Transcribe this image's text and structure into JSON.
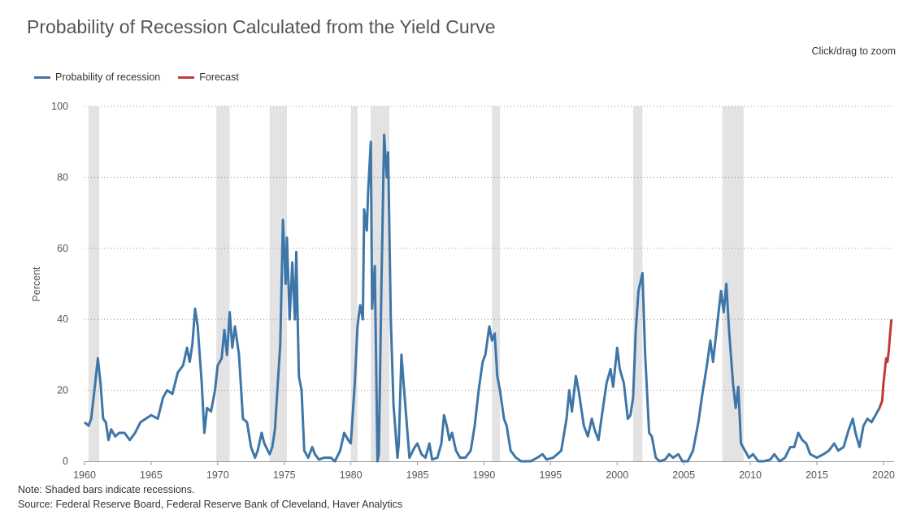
{
  "header": {
    "title": "Probability of Recession Calculated from the Yield Curve",
    "zoom_hint": "Click/drag to zoom"
  },
  "notes": [
    "Note: Shaded bars indicate recessions.",
    "Source: Federal Reserve Board, Federal Reserve Bank of Cleveland, Haver Analytics"
  ],
  "colors": {
    "history": "#3e76a8",
    "forecast": "#c0393b",
    "recession": "#e3e3e3"
  },
  "chart_data": {
    "type": "line",
    "title": "Probability of Recession Calculated from the Yield Curve",
    "xlabel": "",
    "ylabel": "Percent",
    "xlim": [
      1960,
      2020.8
    ],
    "ylim": [
      0,
      100
    ],
    "xticks": [
      "1960",
      "1965",
      "1970",
      "1975",
      "1980",
      "1985",
      "1990",
      "1995",
      "2000",
      "2005",
      "2010",
      "2015",
      "2020"
    ],
    "yticks": [
      "0",
      "20",
      "40",
      "60",
      "80",
      "100"
    ],
    "grid": true,
    "legend": "top-left",
    "recessions": [
      [
        1960.3,
        1961.1
      ],
      [
        1969.9,
        1970.9
      ],
      [
        1973.9,
        1975.2
      ],
      [
        1980.0,
        1980.5
      ],
      [
        1981.5,
        1982.9
      ],
      [
        1990.6,
        1991.2
      ],
      [
        2001.2,
        2001.9
      ],
      [
        2007.9,
        2009.5
      ]
    ],
    "series": [
      {
        "name": "Probability of recession",
        "points": [
          [
            1960.0,
            11
          ],
          [
            1960.3,
            10
          ],
          [
            1960.5,
            12
          ],
          [
            1960.8,
            22
          ],
          [
            1961.0,
            29
          ],
          [
            1961.2,
            22
          ],
          [
            1961.4,
            12
          ],
          [
            1961.6,
            11
          ],
          [
            1961.8,
            6
          ],
          [
            1962.0,
            9
          ],
          [
            1962.3,
            7
          ],
          [
            1962.6,
            8
          ],
          [
            1963.0,
            8
          ],
          [
            1963.4,
            6
          ],
          [
            1963.8,
            8
          ],
          [
            1964.2,
            11
          ],
          [
            1964.6,
            12
          ],
          [
            1965.0,
            13
          ],
          [
            1965.5,
            12
          ],
          [
            1965.9,
            18
          ],
          [
            1966.2,
            20
          ],
          [
            1966.6,
            19
          ],
          [
            1967.0,
            25
          ],
          [
            1967.4,
            27
          ],
          [
            1967.7,
            32
          ],
          [
            1967.9,
            28
          ],
          [
            1968.1,
            33
          ],
          [
            1968.3,
            43
          ],
          [
            1968.5,
            38
          ],
          [
            1968.8,
            22
          ],
          [
            1969.0,
            8
          ],
          [
            1969.2,
            15
          ],
          [
            1969.5,
            14
          ],
          [
            1969.8,
            20
          ],
          [
            1970.0,
            27
          ],
          [
            1970.3,
            29
          ],
          [
            1970.5,
            37
          ],
          [
            1970.7,
            30
          ],
          [
            1970.9,
            42
          ],
          [
            1971.1,
            32
          ],
          [
            1971.3,
            38
          ],
          [
            1971.6,
            30
          ],
          [
            1971.9,
            12
          ],
          [
            1972.2,
            11
          ],
          [
            1972.5,
            4
          ],
          [
            1972.8,
            1
          ],
          [
            1973.0,
            3
          ],
          [
            1973.3,
            8
          ],
          [
            1973.5,
            5
          ],
          [
            1973.9,
            2
          ],
          [
            1974.1,
            4
          ],
          [
            1974.3,
            9
          ],
          [
            1974.5,
            21
          ],
          [
            1974.7,
            33
          ],
          [
            1974.9,
            68
          ],
          [
            1975.1,
            50
          ],
          [
            1975.2,
            63
          ],
          [
            1975.4,
            40
          ],
          [
            1975.6,
            56
          ],
          [
            1975.8,
            40
          ],
          [
            1975.9,
            59
          ],
          [
            1976.1,
            24
          ],
          [
            1976.3,
            20
          ],
          [
            1976.5,
            3
          ],
          [
            1976.8,
            1
          ],
          [
            1977.1,
            4
          ],
          [
            1977.3,
            2
          ],
          [
            1977.6,
            0.5
          ],
          [
            1978.0,
            1
          ],
          [
            1978.5,
            1
          ],
          [
            1978.8,
            0
          ],
          [
            1979.2,
            3
          ],
          [
            1979.5,
            8
          ],
          [
            1979.8,
            6
          ],
          [
            1980.0,
            5
          ],
          [
            1980.3,
            22
          ],
          [
            1980.5,
            38
          ],
          [
            1980.7,
            44
          ],
          [
            1980.9,
            40
          ],
          [
            1981.0,
            71
          ],
          [
            1981.2,
            65
          ],
          [
            1981.3,
            76
          ],
          [
            1981.5,
            90
          ],
          [
            1981.6,
            43
          ],
          [
            1981.8,
            55
          ],
          [
            1982.0,
            0
          ],
          [
            1982.1,
            2
          ],
          [
            1982.3,
            50
          ],
          [
            1982.5,
            92
          ],
          [
            1982.7,
            80
          ],
          [
            1982.8,
            87
          ],
          [
            1983.0,
            40
          ],
          [
            1983.2,
            16
          ],
          [
            1983.5,
            1
          ],
          [
            1983.6,
            5
          ],
          [
            1983.8,
            30
          ],
          [
            1984.0,
            20
          ],
          [
            1984.4,
            1
          ],
          [
            1984.8,
            4
          ],
          [
            1985.0,
            5
          ],
          [
            1985.3,
            2
          ],
          [
            1985.6,
            1
          ],
          [
            1985.9,
            5
          ],
          [
            1986.1,
            0.5
          ],
          [
            1986.5,
            1
          ],
          [
            1986.8,
            5
          ],
          [
            1987.0,
            13
          ],
          [
            1987.2,
            10
          ],
          [
            1987.4,
            6
          ],
          [
            1987.6,
            8
          ],
          [
            1987.9,
            3
          ],
          [
            1988.2,
            1
          ],
          [
            1988.6,
            1
          ],
          [
            1989.0,
            3
          ],
          [
            1989.3,
            10
          ],
          [
            1989.6,
            20
          ],
          [
            1989.9,
            28
          ],
          [
            1990.1,
            30
          ],
          [
            1990.4,
            38
          ],
          [
            1990.6,
            34
          ],
          [
            1990.8,
            36
          ],
          [
            1991.0,
            24
          ],
          [
            1991.2,
            20
          ],
          [
            1991.5,
            12
          ],
          [
            1991.7,
            10
          ],
          [
            1992.0,
            3
          ],
          [
            1992.4,
            1
          ],
          [
            1992.8,
            0
          ],
          [
            1993.5,
            0
          ],
          [
            1994.0,
            1
          ],
          [
            1994.4,
            2
          ],
          [
            1994.7,
            0.5
          ],
          [
            1995.2,
            1
          ],
          [
            1995.8,
            3
          ],
          [
            1996.2,
            12
          ],
          [
            1996.4,
            20
          ],
          [
            1996.6,
            14
          ],
          [
            1996.9,
            24
          ],
          [
            1997.1,
            20
          ],
          [
            1997.5,
            10
          ],
          [
            1997.8,
            7
          ],
          [
            1998.1,
            12
          ],
          [
            1998.3,
            9
          ],
          [
            1998.6,
            6
          ],
          [
            1998.9,
            14
          ],
          [
            1999.2,
            22
          ],
          [
            1999.5,
            26
          ],
          [
            1999.7,
            21
          ],
          [
            2000.0,
            32
          ],
          [
            2000.2,
            26
          ],
          [
            2000.5,
            22
          ],
          [
            2000.8,
            12
          ],
          [
            2001.0,
            13
          ],
          [
            2001.2,
            18
          ],
          [
            2001.4,
            37
          ],
          [
            2001.6,
            48
          ],
          [
            2001.9,
            53
          ],
          [
            2002.1,
            30
          ],
          [
            2002.4,
            8
          ],
          [
            2002.6,
            7
          ],
          [
            2002.9,
            1
          ],
          [
            2003.2,
            0
          ],
          [
            2003.6,
            0.5
          ],
          [
            2003.9,
            2
          ],
          [
            2004.2,
            1
          ],
          [
            2004.6,
            2
          ],
          [
            2004.9,
            0
          ],
          [
            2005.3,
            0
          ],
          [
            2005.7,
            3
          ],
          [
            2006.1,
            11
          ],
          [
            2006.4,
            19
          ],
          [
            2006.7,
            26
          ],
          [
            2007.0,
            34
          ],
          [
            2007.2,
            28
          ],
          [
            2007.5,
            38
          ],
          [
            2007.8,
            48
          ],
          [
            2008.0,
            42
          ],
          [
            2008.2,
            50
          ],
          [
            2008.4,
            37
          ],
          [
            2008.7,
            22
          ],
          [
            2008.9,
            15
          ],
          [
            2009.1,
            21
          ],
          [
            2009.3,
            5
          ],
          [
            2009.6,
            3
          ],
          [
            2009.9,
            1
          ],
          [
            2010.2,
            2
          ],
          [
            2010.6,
            0
          ],
          [
            2011.0,
            0
          ],
          [
            2011.5,
            0.5
          ],
          [
            2011.8,
            2
          ],
          [
            2012.2,
            0
          ],
          [
            2012.6,
            1
          ],
          [
            2013.0,
            4
          ],
          [
            2013.3,
            4
          ],
          [
            2013.6,
            8
          ],
          [
            2013.9,
            6
          ],
          [
            2014.2,
            5
          ],
          [
            2014.5,
            2
          ],
          [
            2015.0,
            1
          ],
          [
            2015.5,
            2
          ],
          [
            2015.9,
            3
          ],
          [
            2016.3,
            5
          ],
          [
            2016.6,
            3
          ],
          [
            2017.0,
            4
          ],
          [
            2017.4,
            9
          ],
          [
            2017.7,
            12
          ],
          [
            2017.9,
            8
          ],
          [
            2018.2,
            4
          ],
          [
            2018.5,
            10
          ],
          [
            2018.8,
            12
          ],
          [
            2019.1,
            11
          ],
          [
            2019.4,
            13
          ],
          [
            2019.7,
            15
          ]
        ]
      },
      {
        "name": "Forecast",
        "points": [
          [
            2019.7,
            15
          ],
          [
            2019.9,
            17
          ],
          [
            2020.0,
            22
          ],
          [
            2020.2,
            29
          ],
          [
            2020.3,
            28
          ],
          [
            2020.4,
            31
          ],
          [
            2020.5,
            36
          ],
          [
            2020.6,
            40
          ]
        ]
      }
    ]
  }
}
